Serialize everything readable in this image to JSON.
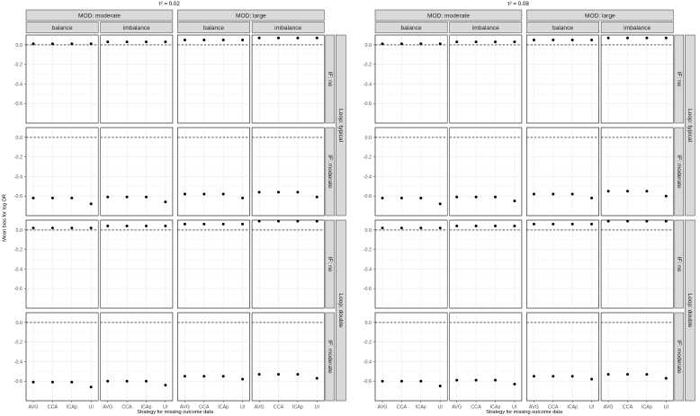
{
  "chart_data": [
    {
      "type": "scatter",
      "title": "τ² = 0.02",
      "xlabel": "Strategy for missing outcome data",
      "ylabel": "Mean bias for log OR",
      "x_categories": [
        "AVG",
        "CCA",
        "ICAp",
        "UI"
      ],
      "y_ticks": [
        "0.0",
        "-0.2",
        "-0.4",
        "-0.6"
      ],
      "ylim": [
        -0.8,
        0.1
      ],
      "reference_line_y": 0,
      "grid": true,
      "col_strips_top": [
        "MOD: moderate",
        "MOD: large"
      ],
      "col_strips_sub": [
        "balance",
        "imbalance",
        "balance",
        "imbalance"
      ],
      "row_strips_outer": [
        "Loop: typical",
        "Loop: double"
      ],
      "row_strips_inner": [
        "IF: no",
        "IF: moderate",
        "IF: no",
        "IF: moderate"
      ],
      "panels": [
        [
          [
            0.01,
            0.01,
            0.01,
            0.01
          ],
          [
            0.03,
            0.03,
            0.03,
            0.03
          ],
          [
            0.05,
            0.05,
            0.05,
            0.05
          ],
          [
            0.07,
            0.07,
            0.07,
            0.07
          ]
        ],
        [
          [
            -0.62,
            -0.62,
            -0.62,
            -0.68
          ],
          [
            -0.61,
            -0.61,
            -0.61,
            -0.66
          ],
          [
            -0.58,
            -0.58,
            -0.58,
            -0.62
          ],
          [
            -0.56,
            -0.56,
            -0.56,
            -0.61
          ]
        ],
        [
          [
            0.02,
            0.02,
            0.02,
            0.02
          ],
          [
            0.04,
            0.04,
            0.04,
            0.04
          ],
          [
            0.06,
            0.06,
            0.06,
            0.06
          ],
          [
            0.09,
            0.09,
            0.09,
            0.09
          ]
        ],
        [
          [
            -0.61,
            -0.61,
            -0.61,
            -0.66
          ],
          [
            -0.6,
            -0.6,
            -0.6,
            -0.64
          ],
          [
            -0.55,
            -0.55,
            -0.55,
            -0.58
          ],
          [
            -0.53,
            -0.53,
            -0.53,
            -0.57
          ]
        ]
      ]
    },
    {
      "type": "scatter",
      "title": "τ² = 0.08",
      "xlabel": "Strategy for missing outcome data",
      "ylabel": "",
      "x_categories": [
        "AVG",
        "CCA",
        "ICAp",
        "UI"
      ],
      "y_ticks": [
        "0.0",
        "-0.2",
        "-0.4",
        "-0.6"
      ],
      "ylim": [
        -0.8,
        0.1
      ],
      "reference_line_y": 0,
      "grid": true,
      "col_strips_top": [
        "MOD: moderate",
        "MOD: large"
      ],
      "col_strips_sub": [
        "balance",
        "imbalance",
        "balance",
        "imbalance"
      ],
      "row_strips_outer": [
        "Loop: typical",
        "Loop: double"
      ],
      "row_strips_inner": [
        "IF: no",
        "IF: moderate",
        "IF: no",
        "IF: moderate"
      ],
      "panels": [
        [
          [
            0.01,
            0.01,
            0.01,
            0.01
          ],
          [
            0.03,
            0.03,
            0.03,
            0.03
          ],
          [
            0.05,
            0.05,
            0.05,
            0.05
          ],
          [
            0.07,
            0.07,
            0.07,
            0.07
          ]
        ],
        [
          [
            -0.62,
            -0.62,
            -0.62,
            -0.68
          ],
          [
            -0.61,
            -0.61,
            -0.61,
            -0.65
          ],
          [
            -0.58,
            -0.58,
            -0.58,
            -0.62
          ],
          [
            -0.55,
            -0.55,
            -0.55,
            -0.6
          ]
        ],
        [
          [
            0.02,
            0.02,
            0.02,
            0.02
          ],
          [
            0.04,
            0.04,
            0.04,
            0.04
          ],
          [
            0.06,
            0.06,
            0.06,
            0.06
          ],
          [
            0.09,
            0.09,
            0.09,
            0.09
          ]
        ],
        [
          [
            -0.6,
            -0.6,
            -0.6,
            -0.65
          ],
          [
            -0.59,
            -0.59,
            -0.59,
            -0.63
          ],
          [
            -0.55,
            -0.55,
            -0.55,
            -0.58
          ],
          [
            -0.53,
            -0.53,
            -0.53,
            -0.57
          ]
        ]
      ]
    }
  ]
}
